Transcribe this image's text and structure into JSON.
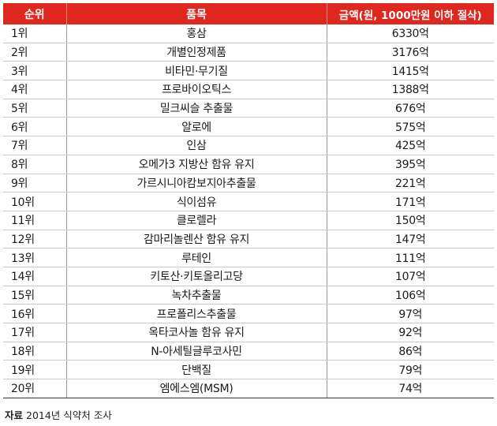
{
  "header": {
    "rank_label": "순위",
    "item_label": "품목",
    "amount_label": "금액(원, 1000만원 이하 절삭)"
  },
  "header_color": "#e0271f",
  "rows": [
    {
      "rank": "1위",
      "item": "홍삼",
      "amount": "6330억"
    },
    {
      "rank": "2위",
      "item": "개별인정제품",
      "amount": "3176억"
    },
    {
      "rank": "3위",
      "item": "비타민·무기질",
      "amount": "1415억"
    },
    {
      "rank": "4위",
      "item": "프로바이오틱스",
      "amount": "1388억"
    },
    {
      "rank": "5위",
      "item": "밀크씨슬 추출물",
      "amount": "676억"
    },
    {
      "rank": "6위",
      "item": "알로에",
      "amount": "575억"
    },
    {
      "rank": "7위",
      "item": "인삼",
      "amount": "425억"
    },
    {
      "rank": "8위",
      "item": "오메가3 지방산 함유 유지",
      "amount": "395억"
    },
    {
      "rank": "9위",
      "item": "가르시니아캄보지아추출물",
      "amount": "221억"
    },
    {
      "rank": "10위",
      "item": "식이섬유",
      "amount": "171억"
    },
    {
      "rank": "11위",
      "item": "클로렐라",
      "amount": "150억"
    },
    {
      "rank": "12위",
      "item": "감마리놀렌산 함유 유지",
      "amount": "147억"
    },
    {
      "rank": "13위",
      "item": "루테인",
      "amount": "111억"
    },
    {
      "rank": "14위",
      "item": "키토산·키토올리고당",
      "amount": "107억"
    },
    {
      "rank": "15위",
      "item": "녹차추출물",
      "amount": "106억"
    },
    {
      "rank": "16위",
      "item": "프로폴리스추출물",
      "amount": "97억"
    },
    {
      "rank": "17위",
      "item": "옥타코사놀 함유 유지",
      "amount": "92억"
    },
    {
      "rank": "18위",
      "item": "N-아세틸글루코사민",
      "amount": "86억"
    },
    {
      "rank": "19위",
      "item": "단백질",
      "amount": "79억"
    },
    {
      "rank": "20위",
      "item": "엠에스엠(MSM)",
      "amount": "74억"
    }
  ],
  "source": {
    "label": "자료",
    "text": "2014년 식약처 조사"
  }
}
